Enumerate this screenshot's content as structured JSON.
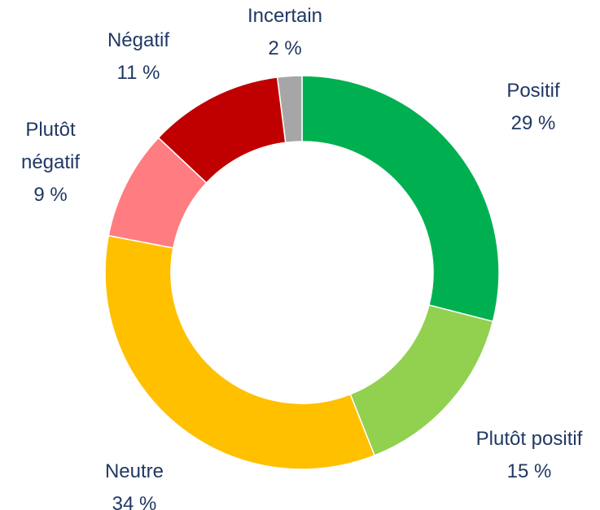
{
  "chart_data": {
    "type": "donut",
    "categories": [
      "Positif",
      "Plutôt positif",
      "Neutre",
      "Plutôt négatif",
      "Négatif",
      "Incertain"
    ],
    "values": [
      29,
      15,
      34,
      9,
      11,
      2
    ],
    "value_labels": [
      "29 %",
      "15 %",
      "34 %",
      "9 %",
      "11 %",
      "2 %"
    ],
    "colors": [
      "#00b050",
      "#92d050",
      "#ffc000",
      "#ff7c80",
      "#c00000",
      "#a6a6a6"
    ]
  }
}
